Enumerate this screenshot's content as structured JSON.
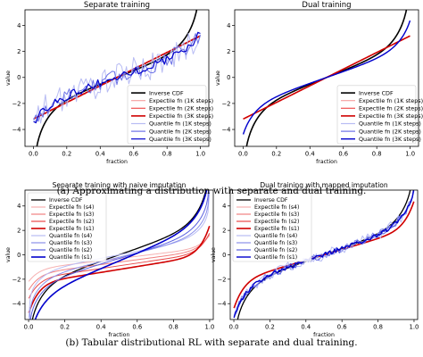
{
  "captions": {
    "a": "(a) Approximating a distribution with separate and dual training.",
    "b": "(b) Tabular distributional RL with separate and dual training."
  },
  "chart_data": [
    {
      "type": "line",
      "title": "Separate training",
      "xlabel": "fraction",
      "ylabel": "value",
      "xlim": [
        -0.05,
        1.05
      ],
      "ylim": [
        -5.3,
        5.2
      ],
      "xticks": [
        0.0,
        0.2,
        0.4,
        0.6,
        0.8,
        1.0
      ],
      "xtick_labels": [
        "0.0",
        "0.2",
        "0.4",
        "0.6",
        "0.8",
        "1.0"
      ],
      "yticks": [
        -4,
        -2,
        0,
        2,
        4
      ],
      "ytick_labels": [
        "−4",
        "−2",
        "0",
        "2",
        "4"
      ],
      "legend": "bottom-right",
      "series": [
        {
          "name": "Inverse CDF",
          "kind": "inv",
          "color": "#000000",
          "width": 1.6,
          "noise": 0
        },
        {
          "name": "Expectile fn (1K steps)",
          "kind": "ex",
          "color": "#f6a3a3",
          "width": 1.2,
          "noise": 0.05
        },
        {
          "name": "Expectile fn (2K steps)",
          "kind": "ex",
          "color": "#ee5050",
          "width": 1.2,
          "noise": 0.03
        },
        {
          "name": "Expectile fn (3K steps)",
          "kind": "ex",
          "color": "#d00000",
          "width": 1.6,
          "noise": 0
        },
        {
          "name": "Quantile fn (1K steps)",
          "kind": "qn",
          "color": "#b8bcf4",
          "width": 1.0,
          "noise": 1.0
        },
        {
          "name": "Quantile fn (2K steps)",
          "kind": "qn",
          "color": "#6c72e6",
          "width": 1.0,
          "noise": 0.6
        },
        {
          "name": "Quantile fn (3K steps)",
          "kind": "qn",
          "color": "#0000cc",
          "width": 1.2,
          "noise": 0.3
        }
      ]
    },
    {
      "type": "line",
      "title": "Dual training",
      "xlabel": "fraction",
      "ylabel": "value",
      "xlim": [
        -0.05,
        1.05
      ],
      "ylim": [
        -5.3,
        5.2
      ],
      "xticks": [
        0.0,
        0.2,
        0.4,
        0.6,
        0.8,
        1.0
      ],
      "xtick_labels": [
        "0.0",
        "0.2",
        "0.4",
        "0.6",
        "0.8",
        "1.0"
      ],
      "yticks": [
        -4,
        -2,
        0,
        2,
        4
      ],
      "ytick_labels": [
        "−4",
        "−2",
        "0",
        "2",
        "4"
      ],
      "legend": "bottom-right",
      "series": [
        {
          "name": "Inverse CDF",
          "kind": "inv",
          "color": "#000000",
          "width": 1.6,
          "noise": 0
        },
        {
          "name": "Expectile fn (1K steps)",
          "kind": "ex",
          "color": "#f6a3a3",
          "width": 1.2,
          "noise": 0
        },
        {
          "name": "Expectile fn (2K steps)",
          "kind": "ex",
          "color": "#ee5050",
          "width": 1.2,
          "noise": 0
        },
        {
          "name": "Expectile fn (3K steps)",
          "kind": "ex",
          "color": "#d00000",
          "width": 1.6,
          "noise": 0
        },
        {
          "name": "Quantile fn (1K steps)",
          "kind": "qd",
          "color": "#b8bcf4",
          "width": 1.0,
          "noise": 0
        },
        {
          "name": "Quantile fn (2K steps)",
          "kind": "qd",
          "color": "#6c72e6",
          "width": 1.0,
          "noise": 0
        },
        {
          "name": "Quantile fn (3K steps)",
          "kind": "qd",
          "color": "#0000cc",
          "width": 1.4,
          "noise": 0
        }
      ]
    },
    {
      "type": "line",
      "title": "Separate training with naive imputation",
      "xlabel": "fraction",
      "ylabel": "value",
      "xlim": [
        -0.02,
        1.02
      ],
      "ylim": [
        -5.3,
        5.3
      ],
      "xticks": [
        0.0,
        0.2,
        0.4,
        0.6,
        0.8,
        1.0
      ],
      "xtick_labels": [
        "0.0",
        "0.2",
        "0.4",
        "0.6",
        "0.8",
        "1.0"
      ],
      "yticks": [
        -4,
        -2,
        0,
        2,
        4
      ],
      "ytick_labels": [
        "−4",
        "−2",
        "0",
        "2",
        "4"
      ],
      "legend": "top-left",
      "series": [
        {
          "name": "Inverse CDF",
          "kind": "inv",
          "color": "#000000",
          "width": 1.3,
          "noise": 0
        },
        {
          "name": "Expectile fn (s4)",
          "kind": "exN4",
          "color": "#f6b0b0",
          "width": 1.0,
          "noise": 0
        },
        {
          "name": "Expectile fn (s3)",
          "kind": "exN3",
          "color": "#f08080",
          "width": 1.0,
          "noise": 0
        },
        {
          "name": "Expectile fn (s2)",
          "kind": "exN2",
          "color": "#e84848",
          "width": 1.0,
          "noise": 0
        },
        {
          "name": "Expectile fn (s1)",
          "kind": "exN1",
          "color": "#d00000",
          "width": 1.6,
          "noise": 0
        },
        {
          "name": "Quantile fn (s4)",
          "kind": "qN4",
          "color": "#b8bcf4",
          "width": 1.0,
          "noise": 0
        },
        {
          "name": "Quantile fn (s3)",
          "kind": "qN3",
          "color": "#8a8fea",
          "width": 1.0,
          "noise": 0
        },
        {
          "name": "Quantile fn (s2)",
          "kind": "qN2",
          "color": "#5a60e0",
          "width": 1.0,
          "noise": 0
        },
        {
          "name": "Quantile fn (s1)",
          "kind": "qN1",
          "color": "#0000cc",
          "width": 1.6,
          "noise": 0
        }
      ]
    },
    {
      "type": "line",
      "title": "Dual training with mapped imputation",
      "xlabel": "fraction",
      "ylabel": "value",
      "xlim": [
        -0.02,
        1.02
      ],
      "ylim": [
        -5.3,
        5.3
      ],
      "xticks": [
        0.0,
        0.2,
        0.4,
        0.6,
        0.8,
        1.0
      ],
      "xtick_labels": [
        "0.0",
        "0.2",
        "0.4",
        "0.6",
        "0.8",
        "1.0"
      ],
      "yticks": [
        -4,
        -2,
        0,
        2,
        4
      ],
      "ytick_labels": [
        "−4",
        "−2",
        "0",
        "2",
        "4"
      ],
      "legend": "top-left",
      "series": [
        {
          "name": "Inverse CDF",
          "kind": "inv",
          "color": "#000000",
          "width": 1.3,
          "noise": 0
        },
        {
          "name": "Expectile fn (s4)",
          "kind": "exM",
          "color": "#f6b0b0",
          "width": 1.0,
          "noise": 0
        },
        {
          "name": "Expectile fn (s3)",
          "kind": "exM",
          "color": "#f08080",
          "width": 1.0,
          "noise": 0
        },
        {
          "name": "Expectile fn (s2)",
          "kind": "exM",
          "color": "#e84848",
          "width": 1.0,
          "noise": 0
        },
        {
          "name": "Expectile fn (s1)",
          "kind": "exM",
          "color": "#d00000",
          "width": 1.6,
          "noise": 0
        },
        {
          "name": "Quantile fn (s4)",
          "kind": "qM",
          "color": "#b8bcf4",
          "width": 1.0,
          "noise": 0.4
        },
        {
          "name": "Quantile fn (s3)",
          "kind": "qM",
          "color": "#8a8fea",
          "width": 1.0,
          "noise": 0.3
        },
        {
          "name": "Quantile fn (s2)",
          "kind": "qM",
          "color": "#5a60e0",
          "width": 1.0,
          "noise": 0.25
        },
        {
          "name": "Quantile fn (s1)",
          "kind": "qM",
          "color": "#0000cc",
          "width": 1.4,
          "noise": 0.15
        }
      ]
    }
  ]
}
